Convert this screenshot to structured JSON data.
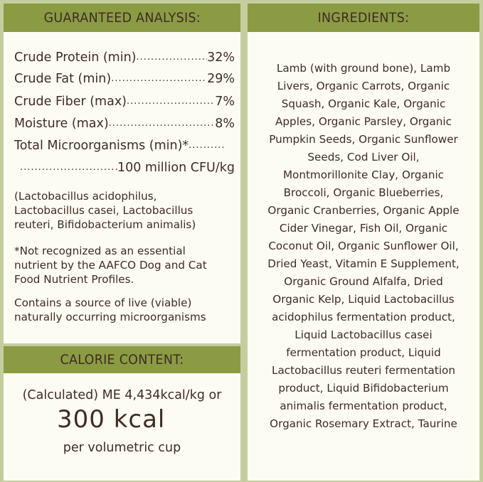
{
  "analysis": {
    "title": "GUARANTEED ANALYSIS:",
    "rows": [
      {
        "label": "Crude Protein (min)",
        "value": "32%"
      },
      {
        "label": "Crude Fat (min)",
        "value": "29%"
      },
      {
        "label": "Crude Fiber (max)",
        "value": "7%"
      },
      {
        "label": "Moisture (max)",
        "value": "8%"
      }
    ],
    "micro_label": "Total Microorganisms (min)*",
    "micro_value": "100 million CFU/kg",
    "strains": [
      "(Lactobacillus acidophilus,",
      "Lactobacillus casei, Lactobacillus",
      "reuteri, Bifidobacterium animalis)"
    ],
    "note": [
      "*Not recognized as an essential",
      "nutrient by the AAFCO Dog and Cat",
      "Food Nutrient Profiles."
    ],
    "live": [
      "Contains a source of live (viable)",
      "naturally occurring microorganisms"
    ]
  },
  "calorie": {
    "title": "CALORIE CONTENT:",
    "line1": "(Calculated) ME 4,434kcal/kg or",
    "big": "300 kcal",
    "line3": "per volumetric cup"
  },
  "ingredients": {
    "title": "INGREDIENTS:",
    "lines": [
      "Lamb (with ground bone), Lamb",
      "Livers, Organic Carrots, Organic",
      "Squash, Organic Kale, Organic",
      "Apples, Organic Parsley, Organic",
      "Pumpkin Seeds, Organic Sunflower",
      "Seeds, Cod Liver Oil,",
      "Montmorillonite Clay, Organic",
      "Broccoli, Organic Blueberries,",
      "Organic Cranberries, Organic Apple",
      "Cider Vinegar, Fish Oil, Organic",
      "Coconut Oil, Organic Sunflower Oil,",
      "Dried Yeast, Vitamin E Supplement,",
      "Organic Ground Alfalfa, Dried",
      "Organic Kelp, Liquid Lactobacillus",
      "acidophilus fermentation product,",
      "Liquid Lactobacillus casei",
      "fermentation product, Liquid",
      "Lactobacillus reuteri fermentation",
      "product, Liquid Bifidobacterium",
      "animalis fermentation product,",
      "Organic Rosemary Extract, Taurine"
    ]
  }
}
